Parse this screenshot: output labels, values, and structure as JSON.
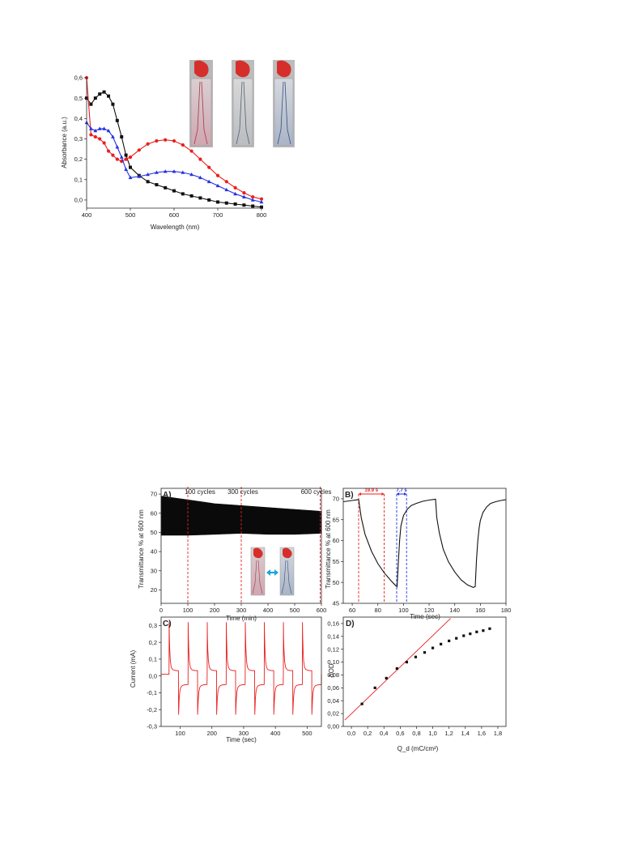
{
  "chart_data": [
    {
      "type": "line",
      "xlabel": "Wavelength (nm)",
      "ylabel": "Absorbance (a.u.)",
      "xlim": [
        400,
        800
      ],
      "ylim": [
        -0.04,
        0.6
      ],
      "xticks": [
        "400",
        "500",
        "600",
        "700",
        "800"
      ],
      "yticks": [
        "0,0",
        "0,1",
        "0,2",
        "0,3",
        "0,4",
        "0,5",
        "0,6"
      ],
      "series": [
        {
          "color": "#111111",
          "marker": "square",
          "x": [
            400,
            410,
            420,
            430,
            440,
            450,
            460,
            470,
            480,
            490,
            500,
            520,
            540,
            560,
            580,
            600,
            620,
            640,
            660,
            680,
            700,
            720,
            740,
            760,
            780,
            800
          ],
          "y": [
            0.5,
            0.47,
            0.5,
            0.52,
            0.53,
            0.51,
            0.47,
            0.39,
            0.31,
            0.22,
            0.16,
            0.12,
            0.09,
            0.075,
            0.06,
            0.045,
            0.03,
            0.02,
            0.01,
            0.0,
            -0.01,
            -0.015,
            -0.02,
            -0.025,
            -0.03,
            -0.035
          ]
        },
        {
          "color": "#e81f1f",
          "marker": "circle",
          "x": [
            400,
            410,
            420,
            430,
            440,
            450,
            460,
            470,
            480,
            490,
            500,
            520,
            540,
            560,
            580,
            600,
            620,
            640,
            660,
            680,
            700,
            720,
            740,
            760,
            780,
            800
          ],
          "y": [
            0.6,
            0.32,
            0.31,
            0.3,
            0.28,
            0.24,
            0.22,
            0.2,
            0.19,
            0.2,
            0.21,
            0.245,
            0.275,
            0.29,
            0.295,
            0.29,
            0.27,
            0.24,
            0.2,
            0.16,
            0.12,
            0.09,
            0.06,
            0.035,
            0.015,
            0.005
          ]
        },
        {
          "color": "#2330e0",
          "marker": "triangle",
          "x": [
            400,
            410,
            420,
            430,
            440,
            450,
            460,
            470,
            480,
            490,
            500,
            520,
            540,
            560,
            580,
            600,
            620,
            640,
            660,
            680,
            700,
            720,
            740,
            760,
            780,
            800
          ],
          "y": [
            0.38,
            0.35,
            0.34,
            0.35,
            0.35,
            0.34,
            0.31,
            0.26,
            0.21,
            0.15,
            0.11,
            0.115,
            0.125,
            0.135,
            0.14,
            0.14,
            0.135,
            0.125,
            0.11,
            0.09,
            0.07,
            0.05,
            0.03,
            0.015,
            0.0,
            -0.01
          ]
        }
      ]
    },
    {
      "type": "area",
      "panel": "A)",
      "xlabel": "Time (min)",
      "ylabel": "Transmittance % at 600 nm",
      "xlim": [
        0,
        600
      ],
      "ylim": [
        13,
        73
      ],
      "xticks": [
        "0",
        "100",
        "200",
        "300",
        "400",
        "500",
        "600"
      ],
      "yticks": [
        "20",
        "30",
        "40",
        "50",
        "60",
        "70"
      ],
      "upper": {
        "x": [
          0,
          100,
          200,
          300,
          400,
          500,
          600
        ],
        "y": [
          69,
          67,
          65,
          64,
          63,
          62,
          61
        ]
      },
      "lower": {
        "x": [
          0,
          100,
          200,
          300,
          400,
          500,
          600
        ],
        "y": [
          48.5,
          48.5,
          49,
          49.5,
          49,
          49,
          49.5
        ]
      },
      "markers": [
        {
          "x": 100,
          "label": "100 cycles"
        },
        {
          "x": 300,
          "label": "300 cycles"
        },
        {
          "x": 600,
          "label": "600 cycles"
        }
      ]
    },
    {
      "type": "line",
      "panel": "B)",
      "xlabel": "Time (sec)",
      "ylabel": "Transmittance % at 600 nm",
      "xlim": [
        53,
        180
      ],
      "ylim": [
        45,
        72.5
      ],
      "xticks": [
        "60",
        "80",
        "100",
        "120",
        "140",
        "160",
        "180"
      ],
      "yticks": [
        "45",
        "50",
        "55",
        "60",
        "65",
        "70"
      ],
      "color": "#111111",
      "x": [
        53,
        60,
        65,
        67,
        70,
        75,
        80,
        85,
        90,
        94,
        95,
        96,
        97,
        98,
        100,
        103,
        106,
        110,
        115,
        120,
        125,
        126,
        128,
        131,
        135,
        140,
        145,
        150,
        154.5,
        156,
        157,
        158,
        159,
        160,
        162,
        165,
        168,
        172,
        176,
        180
      ],
      "y": [
        69.3,
        69.6,
        69.8,
        65.5,
        61.5,
        57.5,
        54.5,
        52.3,
        50.5,
        49.2,
        49.0,
        55,
        60,
        63.5,
        66,
        67.5,
        68.4,
        68.9,
        69.4,
        69.7,
        69.9,
        65.5,
        61.8,
        58,
        55,
        52.5,
        50.6,
        49.4,
        48.8,
        49,
        55.5,
        60,
        63,
        64.8,
        66.7,
        68.1,
        68.9,
        69.3,
        69.6,
        69.8
      ],
      "intervals": [
        {
          "from": 65,
          "to": 84.9,
          "label": "19.9 s",
          "color": "#e81f1f"
        },
        {
          "from": 94.7,
          "to": 102.4,
          "label": "7.7 s",
          "color": "#2330e0"
        }
      ]
    },
    {
      "type": "line",
      "panel": "C)",
      "xlabel": "Time (sec)",
      "ylabel": "Current (mA)",
      "xlim": [
        40,
        545
      ],
      "ylim": [
        -0.3,
        0.35
      ],
      "xticks": [
        "100",
        "200",
        "300",
        "400",
        "500"
      ],
      "yticks": [
        "-0,3",
        "-0,2",
        "-0,1",
        "0,0",
        "0,1",
        "0,2",
        "0,3"
      ],
      "color": "#e81f1f",
      "cycle": {
        "first_start": 65,
        "period": 60,
        "count": 8,
        "peak": 0.32,
        "trough": -0.23,
        "plateau": 0.01
      },
      "x_start": 40,
      "x_end": 545
    },
    {
      "type": "scatter",
      "panel": "D)",
      "xlabel": "Q_d (mC/cm²)",
      "ylabel": "ΔOD",
      "xlim": [
        -0.1,
        1.9
      ],
      "ylim": [
        0.0,
        0.17
      ],
      "xticks": [
        "0,0",
        "0,2",
        "0,4",
        "0,6",
        "0,8",
        "1,0",
        "1,2",
        "1,4",
        "1,6",
        "1,8"
      ],
      "yticks": [
        "0,00",
        "0,02",
        "0,04",
        "0,06",
        "0,08",
        "0,10",
        "0,12",
        "0,14",
        "0,16"
      ],
      "x": [
        0.13,
        0.29,
        0.43,
        0.56,
        0.68,
        0.79,
        0.9,
        1.0,
        1.1,
        1.2,
        1.29,
        1.38,
        1.46,
        1.54,
        1.62,
        1.7
      ],
      "y": [
        0.035,
        0.06,
        0.075,
        0.09,
        0.1,
        0.108,
        0.115,
        0.122,
        0.128,
        0.133,
        0.137,
        0.141,
        0.144,
        0.147,
        0.149,
        0.152
      ],
      "fit": {
        "x": [
          -0.08,
          1.22
        ],
        "y": [
          0.01,
          0.168
        ],
        "color": "#e81f1f"
      }
    }
  ]
}
